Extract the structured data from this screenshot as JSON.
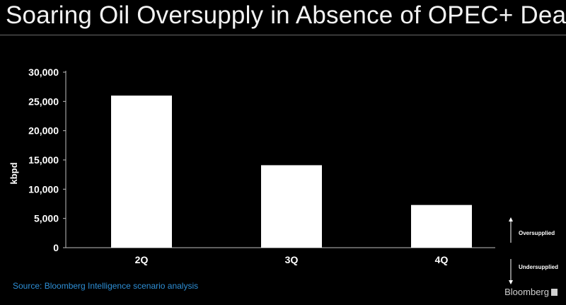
{
  "title": "Soaring Oil Oversupply in Absence of OPEC+ Deal",
  "source": "Source: Bloomberg Intelligence scenario analysis",
  "brand": "Bloomberg",
  "annotations": {
    "oversupplied": "Oversupplied",
    "undersupplied": "Undersupplied"
  },
  "colors": {
    "background": "#000000",
    "bars": "#ffffff",
    "source_text": "#2e8fd6"
  },
  "chart_data": {
    "type": "bar",
    "categories": [
      "2Q",
      "3Q",
      "4Q"
    ],
    "values": [
      26000,
      14100,
      7300
    ],
    "ylabel": "kbpd",
    "ylim": [
      0,
      30000
    ],
    "yticks": [
      0,
      5000,
      10000,
      15000,
      20000,
      25000,
      30000
    ],
    "ytick_labels": [
      "0",
      "5,000",
      "10,000",
      "15,000",
      "20,000",
      "25,000",
      "30,000"
    ],
    "grid": false,
    "legend": "none"
  }
}
